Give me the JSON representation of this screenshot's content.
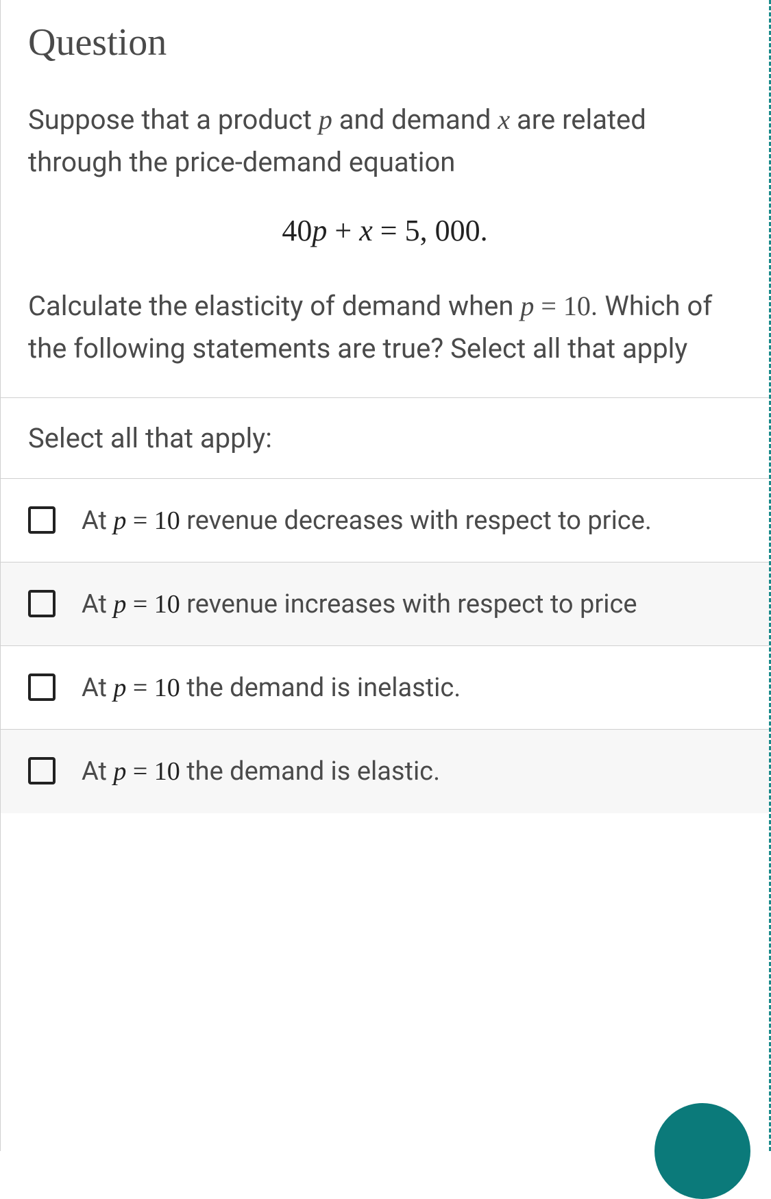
{
  "header": {
    "title": "Question"
  },
  "body": {
    "intro_pre": "Suppose that a product ",
    "intro_var1": "p",
    "intro_mid1": " and demand ",
    "intro_var2": "x",
    "intro_post1": " are related through the price-demand equation",
    "equation_lhs1": "40",
    "equation_var1": "p",
    "equation_plus": " + ",
    "equation_var2": "x",
    "equation_eq": " = ",
    "equation_rhs": "5, 000.",
    "calc_pre": "Calculate the elasticity of demand when ",
    "calc_eq_var": "p",
    "calc_eq_rest": " = 10",
    "calc_post": ". Which of the following statements are true? Select all that apply"
  },
  "instruction": "Select all that apply:",
  "options": [
    {
      "prefix": "At ",
      "eq_var": "p",
      "eq_rest": " = 10",
      "suffix": " revenue decreases with respect to price."
    },
    {
      "prefix": "At ",
      "eq_var": "p",
      "eq_rest": " = 10",
      "suffix": " revenue increases with respect to price"
    },
    {
      "prefix": "At ",
      "eq_var": "p",
      "eq_rest": " = 10",
      "suffix": " the demand is inelastic."
    },
    {
      "prefix": "At ",
      "eq_var": "p",
      "eq_rest": " = 10",
      "suffix": " the demand is elastic."
    }
  ],
  "colors": {
    "border_dashed": "#1a8a8a",
    "fab": "#0b7a7a",
    "text": "#4a4a4a",
    "divider": "#d0d0d0",
    "alt_bg": "#f7f7f7"
  }
}
